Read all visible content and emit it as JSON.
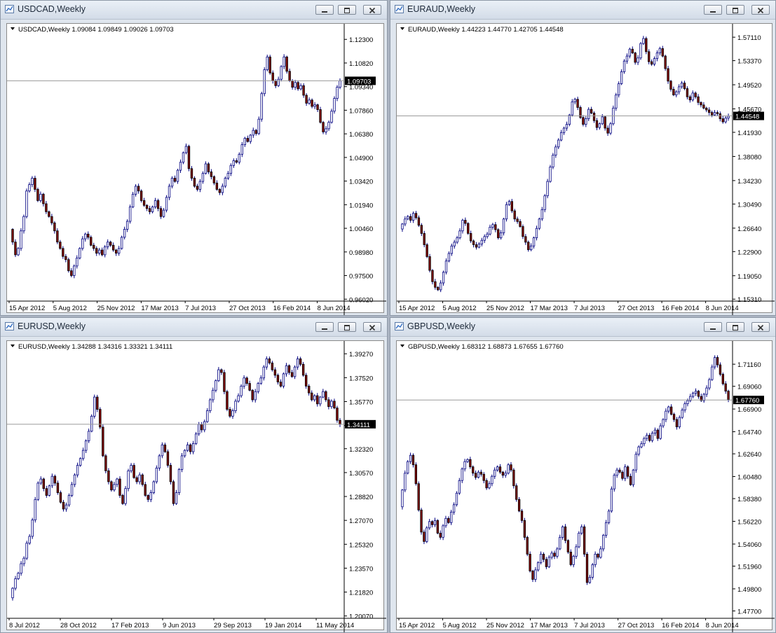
{
  "windows": [
    {
      "title": "USDCAD,Weekly",
      "ohlc_label": "USDCAD,Weekly  1.09084 1.09849 1.09026 1.09703",
      "current_price": "1.09703",
      "chart_data": {
        "type": "candlestick",
        "symbol": "USDCAD",
        "timeframe": "Weekly",
        "ylim": [
          0.959,
          1.131
        ],
        "price_ticks": [
          "1.12300",
          "1.10820",
          "1.09340",
          "1.07860",
          "1.06380",
          "1.04900",
          "1.03420",
          "1.01940",
          "1.00460",
          "0.98980",
          "0.97500",
          "0.96020"
        ],
        "date_ticks": [
          "15 Apr 2012",
          "5 Aug 2012",
          "25 Nov 2012",
          "17 Mar 2013",
          "7 Jul 2013",
          "27 Oct 2013",
          "16 Feb 2014",
          "8 Jun 2014"
        ],
        "current": 1.09703,
        "close": [
          0.996,
          0.988,
          0.992,
          1.003,
          1.012,
          1.028,
          1.032,
          1.036,
          1.029,
          1.022,
          1.026,
          1.02,
          1.015,
          1.012,
          1.008,
          1.003,
          0.996,
          0.992,
          0.987,
          0.985,
          0.978,
          0.975,
          0.981,
          0.986,
          0.992,
          0.998,
          1.001,
          0.999,
          0.994,
          0.992,
          0.989,
          0.991,
          0.988,
          0.993,
          0.996,
          0.994,
          0.991,
          0.989,
          0.992,
          0.999,
          1.004,
          1.009,
          1.018,
          1.026,
          1.031,
          1.028,
          1.022,
          1.019,
          1.017,
          1.015,
          1.018,
          1.022,
          1.017,
          1.012,
          1.016,
          1.024,
          1.031,
          1.036,
          1.034,
          1.041,
          1.046,
          1.052,
          1.056,
          1.042,
          1.036,
          1.031,
          1.029,
          1.034,
          1.039,
          1.045,
          1.04,
          1.037,
          1.033,
          1.029,
          1.027,
          1.031,
          1.036,
          1.039,
          1.044,
          1.047,
          1.046,
          1.051,
          1.057,
          1.061,
          1.059,
          1.063,
          1.066,
          1.064,
          1.073,
          1.089,
          1.104,
          1.112,
          1.102,
          1.097,
          1.094,
          1.098,
          1.106,
          1.112,
          1.103,
          1.097,
          1.093,
          1.096,
          1.092,
          1.094,
          1.088,
          1.083,
          1.085,
          1.081,
          1.082,
          1.079,
          1.071,
          1.065,
          1.067,
          1.071,
          1.078,
          1.086,
          1.093,
          1.097
        ]
      }
    },
    {
      "title": "EURAUD,Weekly",
      "ohlc_label": "EURAUD,Weekly  1.44223 1.44770 1.42705 1.44548",
      "current_price": "1.44548",
      "chart_data": {
        "type": "candlestick",
        "symbol": "EURAUD",
        "timeframe": "Weekly",
        "ylim": [
          1.15,
          1.588
        ],
        "price_ticks": [
          "1.57110",
          "1.53370",
          "1.49520",
          "1.45670",
          "1.41930",
          "1.38080",
          "1.34230",
          "1.30490",
          "1.26640",
          "1.22900",
          "1.19050",
          "1.15310"
        ],
        "date_ticks": [
          "15 Apr 2012",
          "5 Aug 2012",
          "25 Nov 2012",
          "17 Mar 2013",
          "7 Jul 2013",
          "27 Oct 2013",
          "16 Feb 2014",
          "8 Jun 2014"
        ],
        "current": 1.44548,
        "close": [
          1.273,
          1.281,
          1.285,
          1.279,
          1.29,
          1.283,
          1.271,
          1.258,
          1.24,
          1.221,
          1.199,
          1.181,
          1.172,
          1.168,
          1.179,
          1.196,
          1.214,
          1.226,
          1.238,
          1.244,
          1.251,
          1.262,
          1.279,
          1.274,
          1.258,
          1.246,
          1.24,
          1.236,
          1.241,
          1.247,
          1.253,
          1.257,
          1.268,
          1.272,
          1.264,
          1.251,
          1.259,
          1.281,
          1.304,
          1.309,
          1.294,
          1.281,
          1.277,
          1.269,
          1.253,
          1.244,
          1.232,
          1.238,
          1.251,
          1.266,
          1.281,
          1.296,
          1.318,
          1.341,
          1.364,
          1.383,
          1.396,
          1.407,
          1.419,
          1.426,
          1.432,
          1.447,
          1.468,
          1.472,
          1.459,
          1.443,
          1.432,
          1.441,
          1.456,
          1.45,
          1.438,
          1.427,
          1.433,
          1.444,
          1.426,
          1.418,
          1.433,
          1.458,
          1.479,
          1.497,
          1.516,
          1.533,
          1.541,
          1.552,
          1.546,
          1.531,
          1.538,
          1.561,
          1.569,
          1.548,
          1.532,
          1.528,
          1.537,
          1.546,
          1.553,
          1.541,
          1.521,
          1.501,
          1.488,
          1.479,
          1.484,
          1.492,
          1.498,
          1.489,
          1.476,
          1.471,
          1.482,
          1.476,
          1.467,
          1.463,
          1.458,
          1.455,
          1.451,
          1.447,
          1.451,
          1.449,
          1.441,
          1.436,
          1.442,
          1.445
        ]
      }
    },
    {
      "title": "EURUSD,Weekly",
      "ohlc_label": "EURUSD,Weekly  1.34288 1.34316 1.33321 1.34111",
      "current_price": "1.34111",
      "chart_data": {
        "type": "candlestick",
        "symbol": "EURUSD",
        "timeframe": "Weekly",
        "ylim": [
          1.199,
          1.4
        ],
        "price_ticks": [
          "1.39270",
          "1.37520",
          "1.35770",
          "1.34020",
          "1.32320",
          "1.30570",
          "1.28820",
          "1.27070",
          "1.25320",
          "1.23570",
          "1.21820",
          "1.20070"
        ],
        "date_ticks": [
          "8 Jul 2012",
          "28 Oct 2012",
          "17 Feb 2013",
          "9 Jun 2013",
          "29 Sep 2013",
          "19 Jan 2014",
          "11 May 2014"
        ],
        "current": 1.34111,
        "close": [
          1.221,
          1.228,
          1.232,
          1.239,
          1.243,
          1.254,
          1.259,
          1.271,
          1.286,
          1.298,
          1.301,
          1.294,
          1.289,
          1.296,
          1.303,
          1.298,
          1.291,
          1.284,
          1.279,
          1.282,
          1.289,
          1.297,
          1.304,
          1.311,
          1.316,
          1.322,
          1.329,
          1.336,
          1.347,
          1.361,
          1.352,
          1.339,
          1.318,
          1.307,
          1.299,
          1.293,
          1.297,
          1.301,
          1.289,
          1.283,
          1.294,
          1.307,
          1.311,
          1.302,
          1.299,
          1.304,
          1.297,
          1.289,
          1.286,
          1.291,
          1.299,
          1.309,
          1.318,
          1.326,
          1.321,
          1.311,
          1.299,
          1.283,
          1.291,
          1.308,
          1.318,
          1.322,
          1.326,
          1.321,
          1.327,
          1.334,
          1.341,
          1.337,
          1.343,
          1.351,
          1.359,
          1.366,
          1.373,
          1.381,
          1.379,
          1.365,
          1.352,
          1.347,
          1.351,
          1.358,
          1.362,
          1.369,
          1.375,
          1.371,
          1.366,
          1.359,
          1.365,
          1.371,
          1.375,
          1.383,
          1.389,
          1.386,
          1.381,
          1.377,
          1.372,
          1.369,
          1.378,
          1.384,
          1.379,
          1.376,
          1.383,
          1.389,
          1.385,
          1.377,
          1.369,
          1.364,
          1.359,
          1.362,
          1.356,
          1.361,
          1.365,
          1.359,
          1.354,
          1.358,
          1.353,
          1.344,
          1.341
        ]
      }
    },
    {
      "title": "GBPUSD,Weekly",
      "ohlc_label": "GBPUSD,Weekly  1.68312 1.68873 1.67655 1.67760",
      "current_price": "1.67760",
      "chart_data": {
        "type": "candlestick",
        "symbol": "GBPUSD",
        "timeframe": "Weekly",
        "ylim": [
          1.47,
          1.731
        ],
        "price_ticks": [
          "1.71160",
          "1.69060",
          "1.66900",
          "1.64740",
          "1.62640",
          "1.60480",
          "1.58380",
          "1.56220",
          "1.54060",
          "1.51960",
          "1.49800",
          "1.47700"
        ],
        "date_ticks": [
          "15 Apr 2012",
          "5 Aug 2012",
          "25 Nov 2012",
          "17 Mar 2013",
          "7 Jul 2013",
          "27 Oct 2013",
          "16 Feb 2014",
          "8 Jun 2014"
        ],
        "current": 1.6776,
        "close": [
          1.592,
          1.608,
          1.619,
          1.625,
          1.616,
          1.598,
          1.573,
          1.552,
          1.543,
          1.556,
          1.562,
          1.559,
          1.563,
          1.551,
          1.547,
          1.558,
          1.565,
          1.561,
          1.571,
          1.578,
          1.589,
          1.601,
          1.612,
          1.619,
          1.621,
          1.614,
          1.608,
          1.604,
          1.609,
          1.607,
          1.601,
          1.594,
          1.598,
          1.605,
          1.611,
          1.614,
          1.609,
          1.606,
          1.608,
          1.616,
          1.611,
          1.596,
          1.583,
          1.572,
          1.563,
          1.547,
          1.531,
          1.515,
          1.507,
          1.516,
          1.523,
          1.531,
          1.526,
          1.519,
          1.528,
          1.532,
          1.529,
          1.536,
          1.547,
          1.557,
          1.544,
          1.533,
          1.521,
          1.529,
          1.538,
          1.551,
          1.557,
          1.531,
          1.504,
          1.509,
          1.521,
          1.531,
          1.528,
          1.536,
          1.549,
          1.561,
          1.572,
          1.593,
          1.606,
          1.611,
          1.609,
          1.603,
          1.614,
          1.605,
          1.597,
          1.611,
          1.626,
          1.633,
          1.636,
          1.641,
          1.644,
          1.639,
          1.646,
          1.649,
          1.641,
          1.653,
          1.659,
          1.667,
          1.671,
          1.664,
          1.659,
          1.652,
          1.661,
          1.668,
          1.674,
          1.677,
          1.681,
          1.684,
          1.686,
          1.681,
          1.677,
          1.683,
          1.689,
          1.697,
          1.709,
          1.718,
          1.711,
          1.702,
          1.693,
          1.686,
          1.678
        ]
      }
    }
  ],
  "colors": {
    "bull_body": "#ffffff",
    "bear_body": "#800000",
    "candle_outline": "#000080",
    "current_line": "#9a9a9a",
    "current_label_bg": "#000000",
    "current_label_fg": "#ffffff"
  },
  "icons": {
    "window": "chart-window-icon",
    "minimize": "minimize-icon",
    "restore": "restore-icon",
    "close": "close-icon",
    "symbol_menu": "triangle-down-icon"
  }
}
